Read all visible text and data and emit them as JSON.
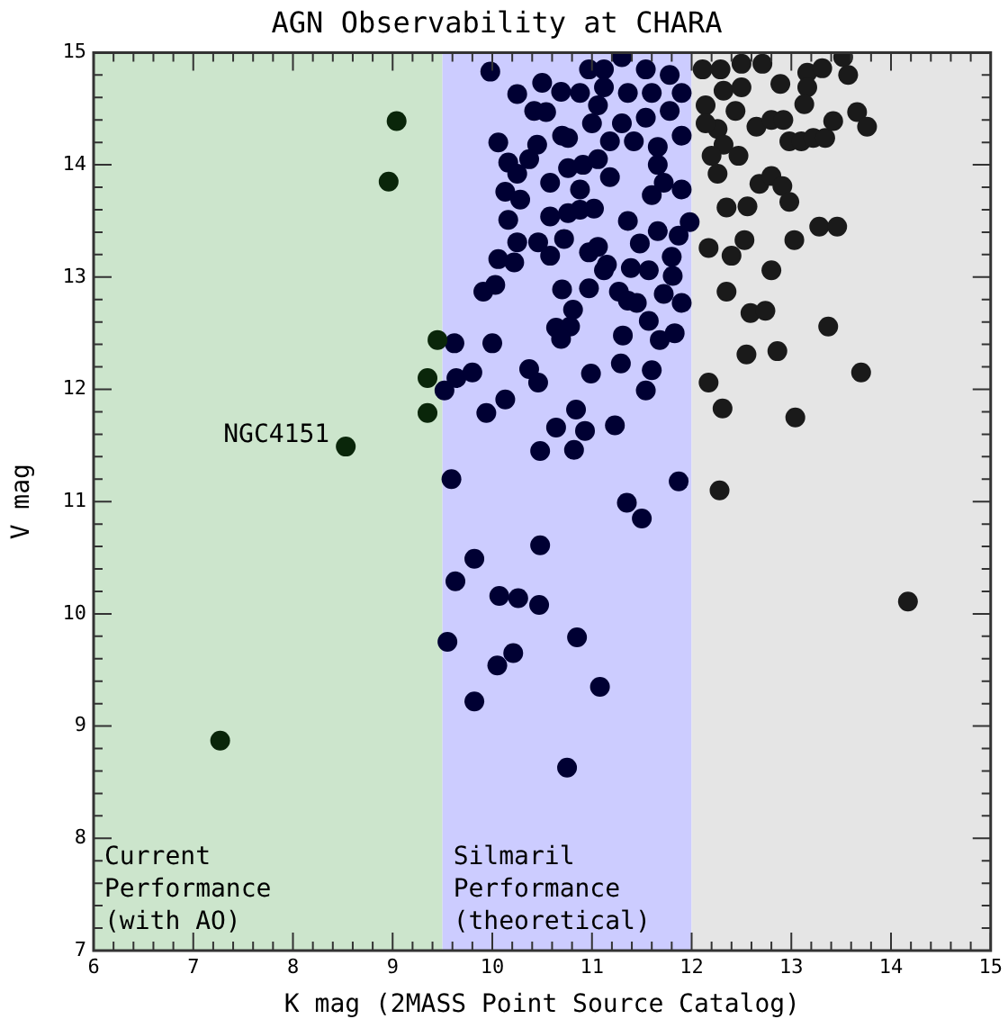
{
  "chart_data": {
    "type": "scatter",
    "title": "AGN Observability at CHARA",
    "xlabel": "K mag (2MASS Point Source Catalog)",
    "ylabel": "V mag",
    "xlim": [
      6,
      15
    ],
    "ylim": [
      7,
      15
    ],
    "xticks": [
      6,
      {
        "value": 6.2,
        "label": null
      },
      {
        "value": 6.4,
        "label": null
      },
      {
        "value": 6.6,
        "label": null
      },
      {
        "value": 6.8,
        "label": null
      },
      7,
      {
        "value": 7.2,
        "label": null
      },
      {
        "value": 7.4,
        "label": null
      },
      {
        "value": 7.6,
        "label": null
      },
      {
        "value": 7.8,
        "label": null
      },
      8,
      {
        "value": 8.2,
        "label": null
      },
      {
        "value": 8.4,
        "label": null
      },
      {
        "value": 8.6,
        "label": null
      },
      {
        "value": 8.8,
        "label": null
      },
      9,
      {
        "value": 9.2,
        "label": null
      },
      {
        "value": 9.4,
        "label": null
      },
      {
        "value": 9.6,
        "label": null
      },
      {
        "value": 9.8,
        "label": null
      },
      10,
      {
        "value": 10.2,
        "label": null
      },
      {
        "value": 10.4,
        "label": null
      },
      {
        "value": 10.6,
        "label": null
      },
      {
        "value": 10.8,
        "label": null
      },
      11,
      {
        "value": 11.2,
        "label": null
      },
      {
        "value": 11.4,
        "label": null
      },
      {
        "value": 11.6,
        "label": null
      },
      {
        "value": 11.8,
        "label": null
      },
      12,
      {
        "value": 12.2,
        "label": null
      },
      {
        "value": 12.4,
        "label": null
      },
      {
        "value": 12.6,
        "label": null
      },
      {
        "value": 12.8,
        "label": null
      },
      13,
      {
        "value": 13.2,
        "label": null
      },
      {
        "value": 13.4,
        "label": null
      },
      {
        "value": 13.6,
        "label": null
      },
      {
        "value": 13.8,
        "label": null
      },
      14,
      {
        "value": 14.2,
        "label": null
      },
      {
        "value": 14.4,
        "label": null
      },
      {
        "value": 14.6,
        "label": null
      },
      {
        "value": 14.8,
        "label": null
      },
      15
    ],
    "yticks": [
      7,
      {
        "value": 7.2,
        "label": null
      },
      {
        "value": 7.4,
        "label": null
      },
      {
        "value": 7.6,
        "label": null
      },
      {
        "value": 7.8,
        "label": null
      },
      8,
      {
        "value": 8.2,
        "label": null
      },
      {
        "value": 8.4,
        "label": null
      },
      {
        "value": 8.6,
        "label": null
      },
      {
        "value": 8.8,
        "label": null
      },
      9,
      {
        "value": 9.2,
        "label": null
      },
      {
        "value": 9.4,
        "label": null
      },
      {
        "value": 9.6,
        "label": null
      },
      {
        "value": 9.8,
        "label": null
      },
      10,
      {
        "value": 10.2,
        "label": null
      },
      {
        "value": 10.4,
        "label": null
      },
      {
        "value": 10.6,
        "label": null
      },
      {
        "value": 10.8,
        "label": null
      },
      11,
      {
        "value": 11.2,
        "label": null
      },
      {
        "value": 11.4,
        "label": null
      },
      {
        "value": 11.6,
        "label": null
      },
      {
        "value": 11.8,
        "label": null
      },
      12,
      {
        "value": 12.2,
        "label": null
      },
      {
        "value": 12.4,
        "label": null
      },
      {
        "value": 12.6,
        "label": null
      },
      {
        "value": 12.8,
        "label": null
      },
      13,
      {
        "value": 13.2,
        "label": null
      },
      {
        "value": 13.4,
        "label": null
      },
      {
        "value": 13.6,
        "label": null
      },
      {
        "value": 13.8,
        "label": null
      },
      14,
      {
        "value": 14.2,
        "label": null
      },
      {
        "value": 14.4,
        "label": null
      },
      {
        "value": 14.6,
        "label": null
      },
      {
        "value": 14.8,
        "label": null
      },
      15
    ],
    "grid": false,
    "legend": false,
    "marker": "circle",
    "bands": [
      {
        "axis": "x",
        "from": 6,
        "to": 9.5,
        "label": "Current\nPerformance\n(with AO)",
        "color": "#cce5cc"
      },
      {
        "axis": "x",
        "from": 9.5,
        "to": 12,
        "label": "Silmaril\nPerformance\n(theoretical)",
        "color": "#ccccff"
      },
      {
        "axis": "x",
        "from": 12,
        "to": 15,
        "color": "#e5e5e5"
      }
    ],
    "annotations": [
      {
        "text": "NGC4151",
        "x": 8.53,
        "y": 11.49
      }
    ],
    "series": [
      {
        "color": "#0a260a",
        "x": [
          9.04,
          8.96,
          9.45,
          9.35,
          9.35,
          8.53,
          7.27
        ],
        "values": [
          14.39,
          13.85,
          12.44,
          12.1,
          11.79,
          11.49,
          8.87
        ]
      },
      {
        "color": "#000033",
        "x": [
          9.52,
          9.59,
          11.87,
          11.35,
          11.5,
          10.48,
          9.82,
          9.63,
          10.07,
          10.26,
          10.47,
          9.55,
          10.85,
          10.21,
          10.05,
          11.08,
          9.82,
          10.75,
          9.98,
          10.25,
          10.5,
          10.69,
          10.42,
          10.54,
          10.06,
          10.45,
          10.7,
          10.88,
          10.97,
          11.12,
          11.3,
          11.12,
          11.36,
          11.54,
          11.6,
          11.78,
          11.9,
          11.06,
          11.3,
          11.54,
          11.78,
          11.0,
          11.18,
          11.42,
          11.66,
          11.9,
          10.76,
          10.16,
          10.25,
          10.37,
          10.58,
          10.76,
          10.91,
          11.06,
          11.18,
          10.88,
          11.6,
          11.72,
          11.9,
          11.66,
          10.13,
          10.28,
          10.16,
          10.58,
          10.76,
          10.88,
          11.02,
          11.36,
          11.66,
          11.87,
          11.98,
          10.25,
          10.46,
          10.58,
          10.72,
          10.97,
          11.06,
          11.15,
          11.48,
          11.39,
          11.57,
          11.8,
          10.06,
          10.22,
          9.91,
          10.03,
          10.7,
          10.97,
          11.12,
          11.27,
          11.36,
          11.45,
          11.72,
          11.81,
          11.9,
          10.81,
          11.57,
          10.64,
          10.78,
          10.69,
          11.31,
          11.68,
          11.83,
          9.62,
          10.0,
          9.64,
          9.8,
          10.37,
          10.46,
          10.99,
          11.29,
          11.6,
          11.54,
          10.13,
          9.94,
          10.84,
          10.64,
          10.93,
          11.23,
          10.48,
          10.82
        ],
        "values": [
          11.99,
          11.2,
          11.18,
          10.99,
          10.85,
          10.61,
          10.49,
          10.29,
          10.16,
          10.14,
          10.08,
          9.75,
          9.79,
          9.65,
          9.54,
          9.35,
          9.22,
          8.63,
          14.83,
          14.63,
          14.73,
          14.65,
          14.48,
          14.47,
          14.2,
          14.18,
          14.26,
          14.64,
          14.85,
          14.85,
          14.96,
          14.69,
          14.64,
          14.85,
          14.64,
          14.8,
          14.64,
          14.53,
          14.37,
          14.42,
          14.48,
          14.37,
          14.21,
          14.21,
          14.16,
          14.26,
          14.24,
          14.02,
          13.92,
          14.05,
          13.84,
          13.97,
          14.0,
          14.05,
          13.89,
          13.78,
          13.73,
          13.84,
          13.78,
          14.0,
          13.76,
          13.69,
          13.51,
          13.54,
          13.57,
          13.6,
          13.61,
          13.5,
          13.41,
          13.37,
          13.49,
          13.31,
          13.31,
          13.19,
          13.34,
          13.22,
          13.27,
          13.11,
          13.3,
          13.08,
          13.06,
          13.18,
          13.16,
          13.13,
          12.87,
          12.93,
          12.89,
          12.9,
          13.06,
          12.87,
          12.79,
          12.77,
          12.85,
          13.01,
          12.77,
          12.71,
          12.61,
          12.55,
          12.56,
          12.45,
          12.48,
          12.44,
          12.5,
          12.41,
          12.41,
          12.1,
          12.15,
          12.18,
          12.06,
          12.14,
          12.23,
          12.17,
          11.99,
          11.91,
          11.79,
          11.82,
          11.66,
          11.63,
          11.68,
          11.45,
          11.46
        ]
      },
      {
        "color": "#1a1a1a",
        "x": [
          12.11,
          12.29,
          12.5,
          12.71,
          12.32,
          12.5,
          12.89,
          13.16,
          13.31,
          13.52,
          13.57,
          13.16,
          12.14,
          12.44,
          12.26,
          12.14,
          12.65,
          12.8,
          12.92,
          13.13,
          12.98,
          13.1,
          13.22,
          13.34,
          13.42,
          13.66,
          13.76,
          12.32,
          12.47,
          12.2,
          12.26,
          12.68,
          12.8,
          12.91,
          12.98,
          12.35,
          12.56,
          13.28,
          13.46,
          12.17,
          12.4,
          12.53,
          13.03,
          12.8,
          12.35,
          12.59,
          12.74,
          13.37,
          12.55,
          12.86,
          13.7,
          12.17,
          12.31,
          13.04,
          12.28,
          14.17
        ],
        "values": [
          14.85,
          14.85,
          14.9,
          14.9,
          14.66,
          14.69,
          14.72,
          14.82,
          14.86,
          14.96,
          14.8,
          14.69,
          14.53,
          14.48,
          14.32,
          14.37,
          14.34,
          14.4,
          14.4,
          14.54,
          14.21,
          14.21,
          14.24,
          14.24,
          14.39,
          14.47,
          14.34,
          14.18,
          14.08,
          14.08,
          13.92,
          13.83,
          13.9,
          13.81,
          13.67,
          13.62,
          13.63,
          13.45,
          13.45,
          13.26,
          13.19,
          13.33,
          13.33,
          13.06,
          12.87,
          12.68,
          12.7,
          12.56,
          12.31,
          12.34,
          12.15,
          12.06,
          11.83,
          11.75,
          11.1,
          10.11
        ]
      }
    ]
  }
}
